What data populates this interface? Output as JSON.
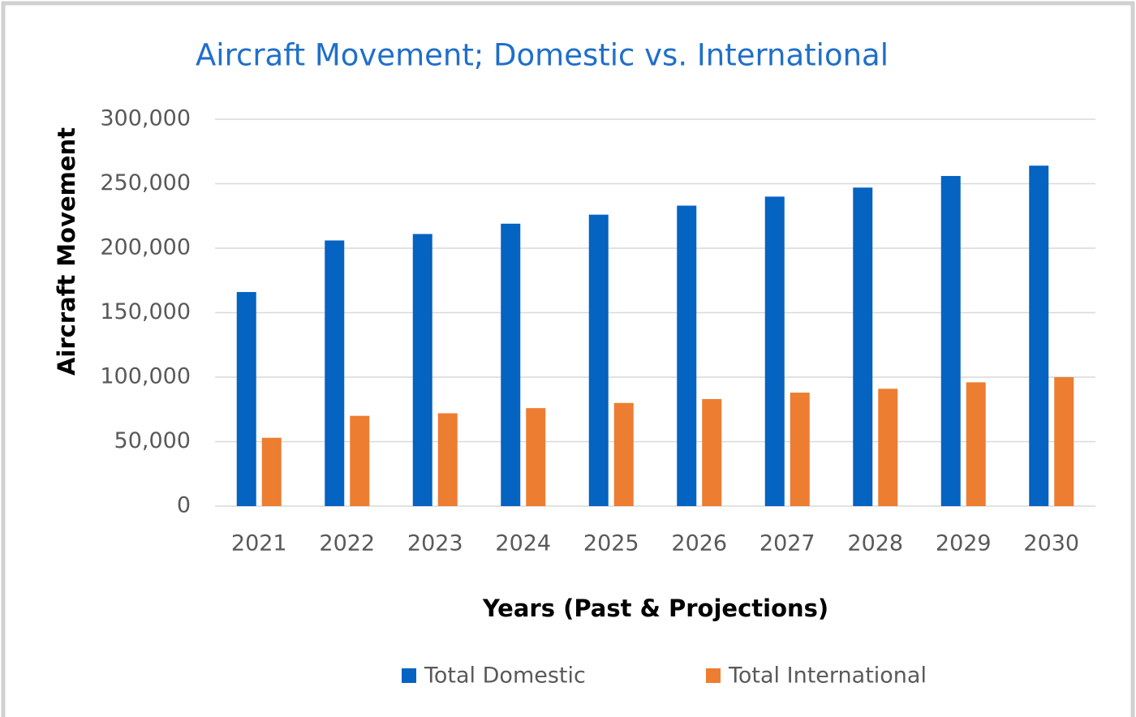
{
  "chart_data": {
    "type": "bar",
    "title": "Aircraft Movement; Domestic vs. International",
    "x_label": "Years (Past & Projections)",
    "y_label": "Aircraft Movement",
    "categories": [
      "2021",
      "2022",
      "2023",
      "2024",
      "2025",
      "2026",
      "2027",
      "2028",
      "2029",
      "2030"
    ],
    "series": [
      {
        "name": "Total Domestic",
        "color": "#0563c1",
        "values": [
          166000,
          206000,
          211000,
          219000,
          226000,
          233000,
          240000,
          247000,
          256000,
          264000
        ]
      },
      {
        "name": "Total International",
        "color": "#ed7d31",
        "values": [
          53000,
          70000,
          72000,
          76000,
          80000,
          83000,
          88000,
          91000,
          96000,
          100000
        ]
      }
    ],
    "ylim": [
      0,
      300000
    ],
    "yticks": [
      0,
      {
        "value": 50000,
        "label": "50,000"
      },
      {
        "value": 100000,
        "label": "100,000"
      },
      {
        "value": 150000,
        "label": "150,000"
      },
      {
        "value": 200000,
        "label": "200,000"
      },
      {
        "value": 250000,
        "label": "250,000"
      },
      {
        "value": 300000,
        "label": "300,000"
      }
    ],
    "grid": true,
    "legend": "bottom"
  }
}
